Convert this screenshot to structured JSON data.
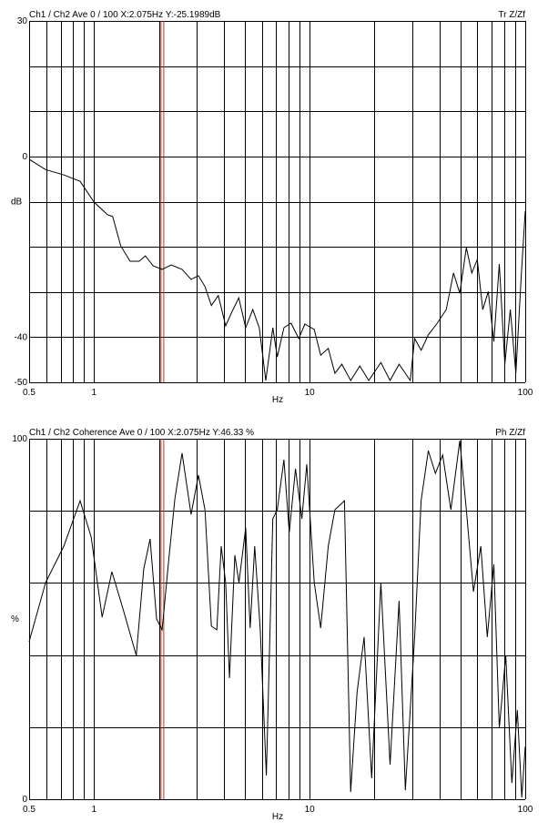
{
  "chart_data": [
    {
      "type": "line",
      "title": "Ch1 / Ch2  Ave 0 / 100  X:2.075Hz  Y:-25.1989dB",
      "subtitle": "Tr Z/Zf",
      "y_label": "dB",
      "x_label": "Hz",
      "xscale": "log",
      "xlim": [
        0.5,
        100
      ],
      "xticks": [
        0.5,
        1,
        10,
        100
      ],
      "x_gridlines": [
        0.6,
        0.7,
        0.8,
        0.9,
        1,
        2,
        3,
        4,
        5,
        6,
        7,
        8,
        9,
        10,
        20,
        30,
        40,
        50,
        60,
        70,
        80,
        90
      ],
      "ylim": [
        -50,
        30
      ],
      "yticks": [
        30,
        0,
        -40,
        -50
      ],
      "y_gridlines": [
        -40,
        -30,
        -20,
        -10,
        0,
        10,
        20
      ],
      "cursor_x": 2.075,
      "cursor_color": "#b03a2e",
      "color": "#000000",
      "x": [
        0.5,
        0.596,
        0.724,
        0.862,
        1.0,
        1.155,
        1.22,
        1.33,
        1.47,
        1.62,
        1.73,
        1.88,
        2.07,
        2.28,
        2.56,
        2.82,
        3.05,
        3.27,
        3.5,
        3.77,
        4.08,
        4.37,
        4.69,
        5.05,
        5.45,
        5.84,
        6.26,
        6.75,
        7.08,
        7.6,
        8.2,
        8.9,
        9.5,
        10.5,
        11.25,
        12.2,
        13.1,
        14.1,
        15.5,
        17.1,
        18.8,
        21.4,
        23.6,
        26,
        29.3,
        30.7,
        32.9,
        35.5,
        39.1,
        43,
        46.5,
        49.7,
        53.3,
        56.5,
        59.9,
        63.5,
        67.4,
        71.5,
        75.8,
        80.4,
        85.3,
        90.5,
        96,
        100
      ],
      "values": [
        -0.6,
        -2.9,
        -4.1,
        -5.5,
        -10.1,
        -12.9,
        -13.3,
        -19.8,
        -23.2,
        -23.2,
        -22,
        -24.2,
        -25,
        -24,
        -25,
        -27.2,
        -26.4,
        -28.8,
        -33,
        -30.8,
        -37.5,
        -34.3,
        -31.3,
        -37.9,
        -33.9,
        -37.9,
        -49.6,
        -37.9,
        -44.4,
        -37.9,
        -36.9,
        -40.3,
        -37.1,
        -38.3,
        -44,
        -42.5,
        -48,
        -46,
        -49.6,
        -46.4,
        -49.6,
        -45.6,
        -49.6,
        -46,
        -49.6,
        -40.3,
        -42.9,
        -39.5,
        -36.9,
        -33.9,
        -25.8,
        -30.3,
        -20.2,
        -25.8,
        -22.8,
        -33.9,
        -29.9,
        -41,
        -23.8,
        -46,
        -33.9,
        -48,
        -25.8,
        -12.1
      ]
    },
    {
      "type": "line",
      "title": "Ch1 / Ch2  Coherence Ave 0 / 100  X:2.075Hz  Y:46.33 %",
      "subtitle": "Ph Z/Zf",
      "y_label": "%",
      "x_label": "Hz",
      "xscale": "log",
      "xlim": [
        0.5,
        100
      ],
      "xticks": [
        0.5,
        1,
        10,
        100
      ],
      "x_gridlines": [
        0.6,
        0.7,
        0.8,
        0.9,
        1,
        2,
        3,
        4,
        5,
        6,
        7,
        8,
        9,
        10,
        20,
        30,
        40,
        50,
        60,
        70,
        80,
        90
      ],
      "ylim": [
        0,
        100
      ],
      "yticks": [
        100,
        0
      ],
      "y_gridlines": [
        20,
        40,
        60,
        80
      ],
      "cursor_x": 2.075,
      "cursor_color": "#b03a2e",
      "color": "#000000",
      "x": [
        0.5,
        0.596,
        0.724,
        0.862,
        0.97,
        1.09,
        1.21,
        1.36,
        1.57,
        1.7,
        1.82,
        1.95,
        2.07,
        2.21,
        2.37,
        2.56,
        2.82,
        3.05,
        3.27,
        3.5,
        3.71,
        3.89,
        4.08,
        4.25,
        4.5,
        4.7,
        5.05,
        5.3,
        5.56,
        5.9,
        6.3,
        6.75,
        7.08,
        7.6,
        8.05,
        8.6,
        9.2,
        9.7,
        10.5,
        11.25,
        12.2,
        13.1,
        14.5,
        15.5,
        16.6,
        17.9,
        19.4,
        21.4,
        23.6,
        26,
        27.8,
        30.7,
        32.9,
        35.5,
        38.3,
        41.4,
        45.2,
        49.7,
        53.3,
        57.5,
        62.2,
        66.7,
        71.5,
        75.8,
        81.2,
        86.7,
        91.9,
        96.4,
        100
      ],
      "values": [
        43.7,
        60.1,
        70.2,
        82.8,
        72.7,
        50.5,
        63.1,
        53,
        39.9,
        63.9,
        72.2,
        50,
        47,
        65.2,
        83.3,
        96,
        79,
        89.9,
        80.3,
        48,
        47,
        70.2,
        60.1,
        33.6,
        67.7,
        60.1,
        75.3,
        47.5,
        70.2,
        47,
        6.6,
        77.8,
        80.3,
        94.2,
        74,
        91.7,
        77.8,
        92.9,
        60.1,
        47.5,
        70.2,
        80.3,
        82.8,
        2,
        29.8,
        45,
        5.8,
        60.1,
        9.6,
        55,
        2.5,
        45,
        82.8,
        96.7,
        90.4,
        95.5,
        80.3,
        99.5,
        80.3,
        57.6,
        70.2,
        45,
        65.2,
        19.7,
        39.9,
        4.5,
        24.7,
        0.5,
        14.6
      ]
    }
  ]
}
